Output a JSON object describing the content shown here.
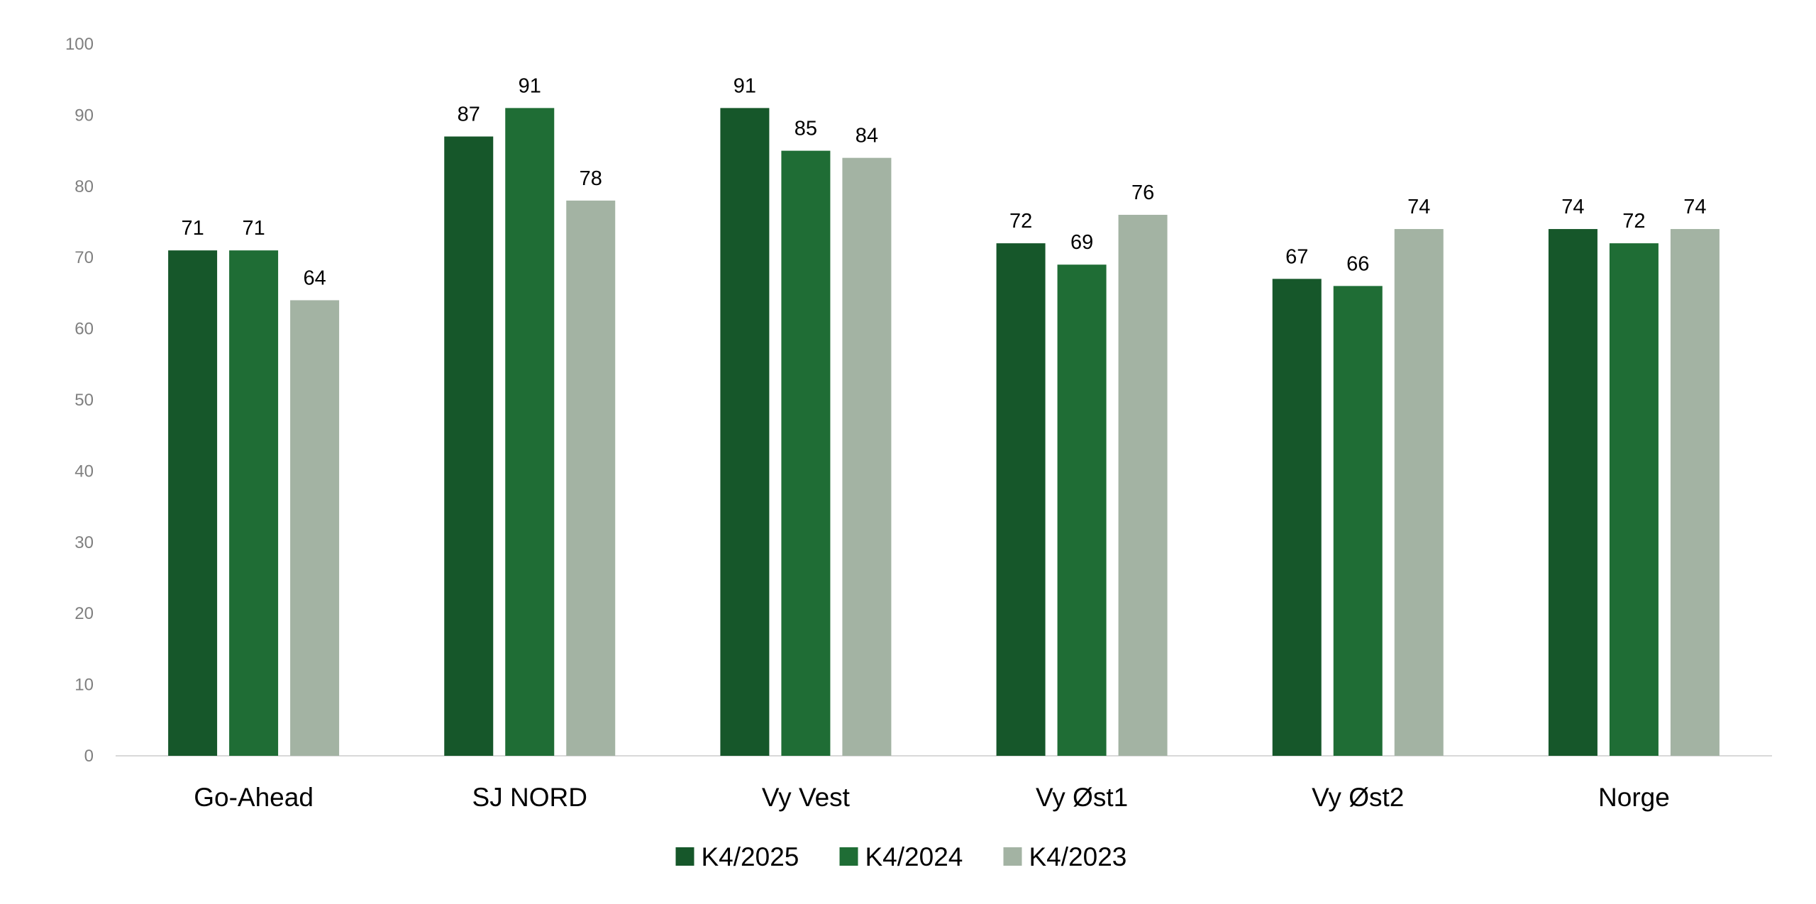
{
  "chart_data": {
    "type": "bar",
    "title": "",
    "xlabel": "",
    "ylabel": "",
    "ylim": [
      0,
      100
    ],
    "yticks": [
      0,
      10,
      20,
      30,
      40,
      50,
      60,
      70,
      80,
      90,
      100
    ],
    "grid": false,
    "legend_position": "bottom",
    "categories": [
      "Go-Ahead",
      "SJ NORD",
      "Vy Vest",
      "Vy Øst1",
      "Vy Øst2",
      "Norge"
    ],
    "series": [
      {
        "name": "K4/2025",
        "color": "#16572a",
        "values": [
          71,
          87,
          91,
          72,
          67,
          74
        ]
      },
      {
        "name": "K4/2024",
        "color": "#1f6d35",
        "values": [
          71,
          91,
          85,
          69,
          66,
          72
        ]
      },
      {
        "name": "K4/2023",
        "color": "#a3b3a3",
        "values": [
          64,
          78,
          84,
          76,
          74,
          74
        ]
      }
    ]
  }
}
